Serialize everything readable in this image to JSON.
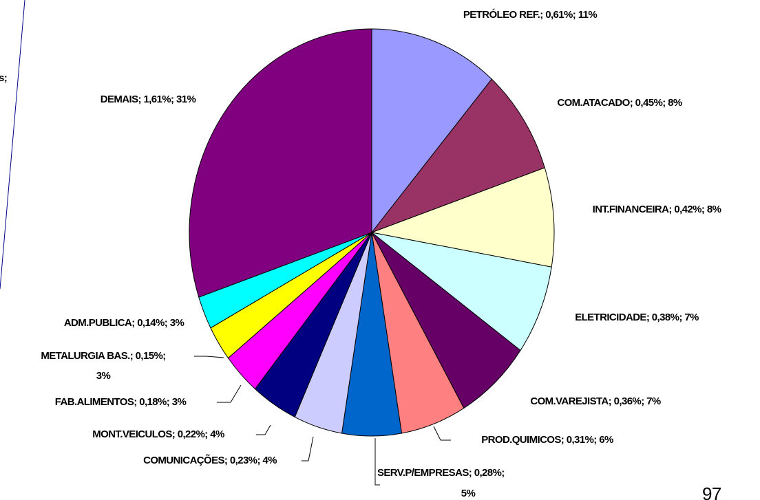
{
  "chart_data": {
    "type": "pie",
    "categories": [
      "PETRÓLEO REF.",
      "COM.ATACADO",
      "INT.FINANCEIRA",
      "ELETRICIDADE",
      "COM.VAREJISTA",
      "PROD.QUIMICOS",
      "SERV.P/EMPRESAS",
      "COMUNICAÇÕES",
      "MONT.VEICULOS",
      "FAB.ALIMENTOS",
      "METALURGIA BAS.",
      "ADM.PUBLICA",
      "DEMAIS"
    ],
    "values": [
      0.61,
      0.45,
      0.42,
      0.38,
      0.36,
      0.31,
      0.28,
      0.23,
      0.22,
      0.18,
      0.15,
      0.14,
      1.61
    ],
    "value_labels": [
      "0,61%",
      "0,45%",
      "0,42%",
      "0,38%",
      "0,36%",
      "0,31%",
      "0,28%",
      "0,23%",
      "0,22%",
      "0,18%",
      "0,15%",
      "0,14%",
      "1,61%"
    ],
    "percents": [
      11,
      8,
      8,
      7,
      7,
      6,
      5,
      4,
      4,
      3,
      3,
      3,
      31
    ],
    "percent_labels": [
      "11%",
      "8%",
      "8%",
      "7%",
      "7%",
      "6%",
      "5%",
      "4%",
      "4%",
      "3%",
      "3%",
      "3%",
      "31%"
    ],
    "colors": [
      "#9999ff",
      "#993366",
      "#ffffcc",
      "#ccffff",
      "#660066",
      "#ff8080",
      "#0066cc",
      "#ccccff",
      "#000080",
      "#ff00ff",
      "#ffff00",
      "#00ffff",
      "#800080"
    ]
  },
  "fragments": {
    "left_cut": "s;",
    "page_number": "97"
  }
}
